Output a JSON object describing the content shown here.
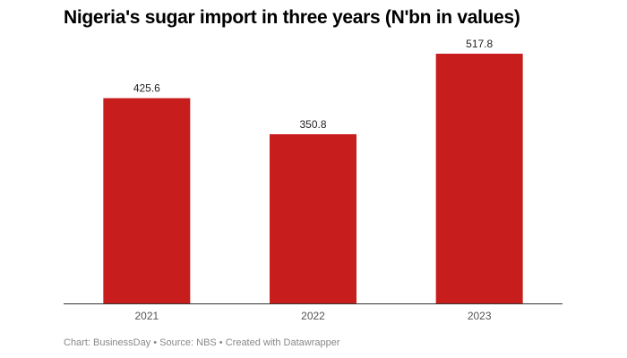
{
  "chart_data": {
    "type": "bar",
    "title": "Nigeria's sugar import in three years (N'bn in values)",
    "categories": [
      "2021",
      "2022",
      "2023"
    ],
    "values": [
      425.6,
      350.8,
      517.8
    ],
    "value_labels": [
      "425.6",
      "350.8",
      "517.8"
    ],
    "xlabel": "",
    "ylabel": "",
    "ylim": [
      0,
      517.8
    ],
    "grid": false,
    "bar_color": "#c71e1d"
  },
  "footer": "Chart: BusinessDay • Source: NBS • Created with Datawrapper"
}
